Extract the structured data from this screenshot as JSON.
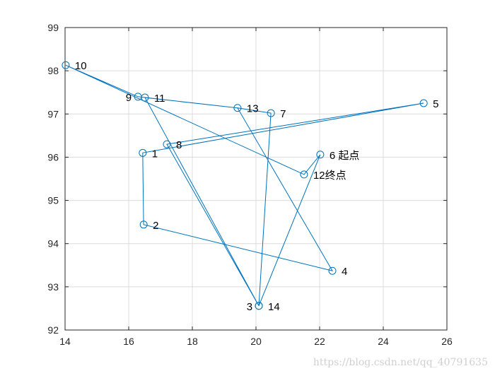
{
  "chart_data": {
    "type": "line",
    "title": "",
    "xlabel": "",
    "ylabel": "",
    "xlim": [
      14,
      26
    ],
    "ylim": [
      92,
      99
    ],
    "xticks": [
      "14",
      "16",
      "18",
      "20",
      "22",
      "24",
      "26"
    ],
    "yticks": [
      "92",
      "93",
      "94",
      "95",
      "96",
      "97",
      "98",
      "99"
    ],
    "grid": true,
    "line_color": "#0072BD",
    "marker": "circle",
    "points": [
      {
        "id": "1",
        "label": "1",
        "x": 16.44,
        "y": 96.1
      },
      {
        "id": "2",
        "label": "2",
        "x": 16.47,
        "y": 94.44
      },
      {
        "id": "3",
        "label": "3",
        "x": 20.09,
        "y": 92.56
      },
      {
        "id": "4",
        "label": "4",
        "x": 22.4,
        "y": 93.37
      },
      {
        "id": "5",
        "label": "5",
        "x": 25.27,
        "y": 97.25
      },
      {
        "id": "6",
        "label": "6  起点",
        "x": 22.02,
        "y": 96.06
      },
      {
        "id": "7",
        "label": "7",
        "x": 20.47,
        "y": 97.02
      },
      {
        "id": "8",
        "label": "8",
        "x": 17.2,
        "y": 96.3
      },
      {
        "id": "9",
        "label": "9",
        "x": 16.29,
        "y": 97.4
      },
      {
        "id": "10",
        "label": "10",
        "x": 14.02,
        "y": 98.13
      },
      {
        "id": "11",
        "label": "11",
        "x": 16.51,
        "y": 97.38
      },
      {
        "id": "12",
        "label": "12终点",
        "x": 21.51,
        "y": 95.6
      },
      {
        "id": "13",
        "label": "13",
        "x": 19.42,
        "y": 97.14
      },
      {
        "id": "14",
        "label": "14",
        "x": 20.09,
        "y": 92.56
      }
    ],
    "path_order": [
      "6",
      "3",
      "7",
      "13",
      "4",
      "2",
      "1",
      "5",
      "8",
      "14",
      "11",
      "13",
      "9",
      "10",
      "12",
      "6"
    ]
  },
  "watermark": "https://blog.csdn.net/qq_40791635"
}
